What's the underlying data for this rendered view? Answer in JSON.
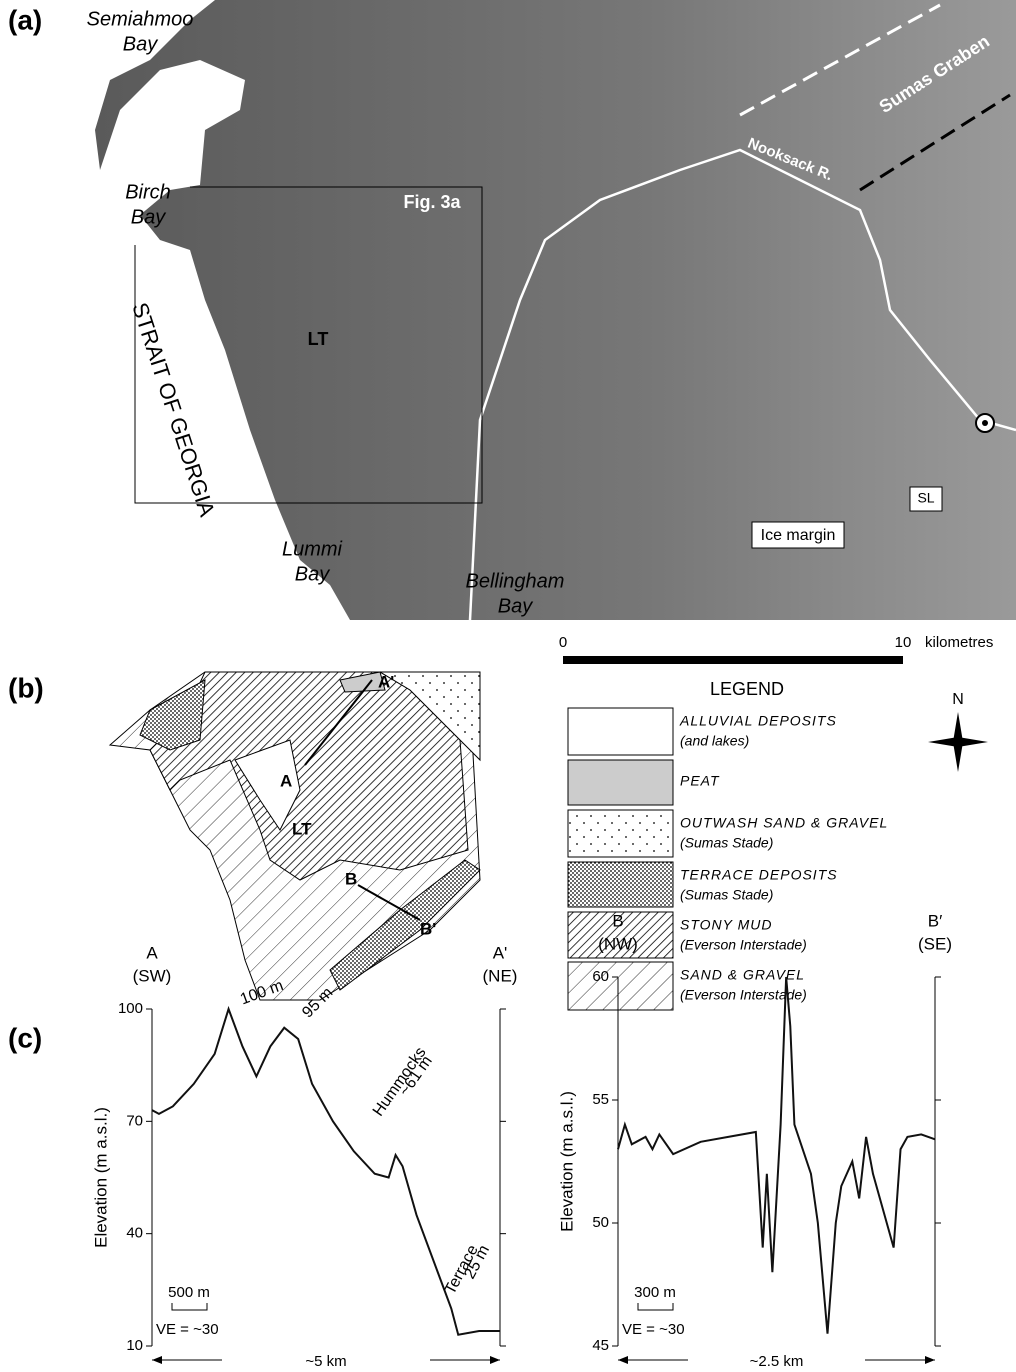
{
  "panel_labels": [
    "(a)",
    "(b)",
    "(c)"
  ],
  "map_a": {
    "semiahmoo_bay": [
      "Semiahmoo",
      "Bay"
    ],
    "birch_bay": [
      "Birch",
      "Bay"
    ],
    "strait": "STRAIT OF GEORGIA",
    "lt": "LT",
    "fig_box": "Fig. 3a",
    "river": "Nooksack R.",
    "graben": "Sumas Graben",
    "lummi_bay": [
      "Lummi",
      "Bay"
    ],
    "bellingham_bay": [
      "Bellingham",
      "Bay"
    ],
    "ice_margin": "Ice margin",
    "sl": "SL"
  },
  "scale_bar": {
    "start": "0",
    "end": "10",
    "unit": "kilometres"
  },
  "legend": {
    "title": "LEGEND",
    "items": [
      {
        "name": "ALLUVIAL DEPOSITS",
        "note": "(and lakes)"
      },
      {
        "name": "PEAT"
      },
      {
        "name": "OUTWASH SAND & GRAVEL",
        "note": "(Sumas Stade)"
      },
      {
        "name": "TERRACE DEPOSITS",
        "note": "(Sumas Stade)"
      },
      {
        "name": "STONY MUD",
        "note": "(Everson Interstade)"
      },
      {
        "name": "SAND & GRAVEL",
        "note": "(Everson Interstade)"
      }
    ]
  },
  "north": "N",
  "map_b": {
    "a_prime": "A'",
    "a": "A",
    "lt": "LT",
    "b": "B",
    "b_prime": "B'"
  },
  "chart_data": [
    {
      "type": "line",
      "color": "#111111",
      "x": [
        0,
        0.1,
        0.3,
        0.6,
        0.9,
        1.1,
        1.3,
        1.5,
        1.7,
        1.9,
        2.1,
        2.3,
        2.6,
        2.9,
        3.2,
        3.4,
        3.5,
        3.6,
        3.8,
        4.1,
        4.3,
        4.4,
        4.7,
        5
      ],
      "values": [
        73,
        72,
        74,
        80,
        88,
        100,
        90,
        82,
        90,
        95,
        92,
        80,
        70,
        62,
        56,
        55,
        61,
        58,
        45,
        30,
        20,
        13,
        14,
        14
      ],
      "xlim": [
        0,
        5
      ],
      "ylim": [
        10,
        100
      ],
      "yticks": [
        10,
        40,
        70,
        100
      ],
      "y_label": "Elevation  (m a.s.l.)",
      "start_label": [
        "A",
        "(SW)"
      ],
      "end_label": [
        "A'",
        "(NE)"
      ],
      "distance": "~5 km",
      "scale": "500 m",
      "ve": "VE = ~30",
      "annotations": [
        [
          "100 m"
        ],
        [
          "95 m"
        ],
        [
          "Hummocks",
          "~61 m"
        ],
        [
          "Terrace",
          "25 m"
        ]
      ]
    },
    {
      "type": "line",
      "color": "#111111",
      "x": [
        0,
        0.05,
        0.1,
        0.2,
        0.25,
        0.3,
        0.4,
        0.6,
        0.8,
        1.0,
        1.05,
        1.08,
        1.12,
        1.18,
        1.22,
        1.25,
        1.28,
        1.4,
        1.45,
        1.52,
        1.58,
        1.62,
        1.7,
        1.75,
        1.8,
        1.85,
        1.9,
        1.95,
        2.0,
        2.05,
        2.1,
        2.2,
        2.3
      ],
      "values": [
        53,
        54,
        53.2,
        53.5,
        53,
        53.6,
        52.8,
        53.3,
        53.5,
        53.7,
        49,
        52,
        48,
        54,
        60,
        58,
        54,
        52,
        50,
        45.5,
        50,
        51.5,
        52.5,
        51,
        53.5,
        52,
        51,
        50,
        49,
        53,
        53.5,
        53.6,
        53.4
      ],
      "xlim": [
        0,
        2.3
      ],
      "ylim": [
        45,
        60
      ],
      "yticks": [
        45,
        50,
        55,
        60
      ],
      "y_label": "Elevation  (m a.s.l.)",
      "start_label": [
        "B",
        "(NW)"
      ],
      "end_label": [
        "B′",
        "(SE)"
      ],
      "distance": "~2.5 km",
      "scale": "300 m",
      "ve": "VE = ~30",
      "annotations": []
    }
  ]
}
